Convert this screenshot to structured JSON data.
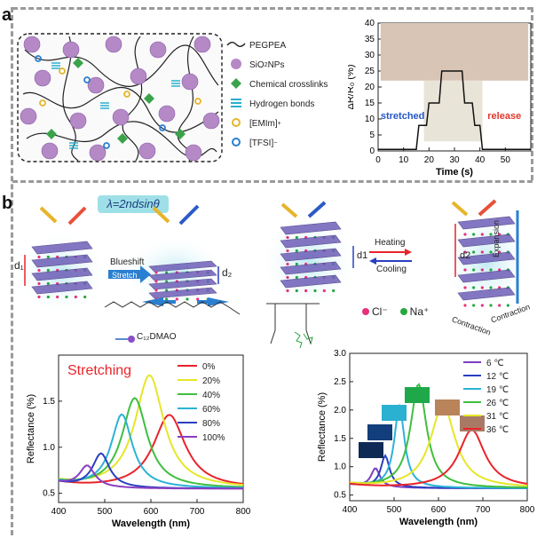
{
  "panel_a": {
    "label": "a",
    "legend": [
      {
        "text": "PEGPEA",
        "icon": "polymer-chain-icon"
      },
      {
        "text": "SiO",
        "sub": "2",
        "tail": " NPs",
        "icon": "nanoparticle-icon"
      },
      {
        "text": "Chemical crosslinks",
        "icon": "crosslink-diamond-icon"
      },
      {
        "text": "Hydrogen bonds",
        "icon": "hydrogen-bond-icon"
      },
      {
        "text": "[EMIm]",
        "sup": "+",
        "icon": "emim-cation-icon"
      },
      {
        "text": "[TFSI]",
        "sup": "−",
        "icon": "tfsi-anion-icon"
      }
    ],
    "chart": {
      "ylabel": "ΔR/R₀ (%)",
      "xlabel": "Time (s)",
      "annotations": [
        "stretched",
        "release"
      ],
      "colors": {
        "stretched": "#2457c5",
        "release": "#e0392b"
      }
    }
  },
  "panel_b": {
    "label": "b",
    "bragg_equation": "λ=2ndsinθ",
    "blueshift_label": "Blueshift",
    "stretch_label": "Stretch",
    "d1": "d₁",
    "d2": "d₂",
    "d1_right": "d1",
    "d2_right": "d2",
    "heating_label": "Heating",
    "cooling_label": "Cooling",
    "expansion_label": "Expansion",
    "contraction_label": "Contraction",
    "surfactant_label": "C₁₂DMAO",
    "ions": [
      {
        "label": "Cl⁻",
        "color": "#e8317a"
      },
      {
        "label": "Na⁺",
        "color": "#27a640"
      }
    ]
  },
  "chart_data": [
    {
      "type": "line",
      "title": "Stretching",
      "xlabel": "Wavelength (nm)",
      "ylabel": "Reflectance (%)",
      "xlim": [
        400,
        800
      ],
      "ylim": [
        0.4,
        2.0
      ],
      "xticks": [
        400,
        500,
        600,
        700,
        800
      ],
      "yticks": [
        0.5,
        1.0,
        1.5
      ],
      "legend_position": "top-right",
      "series": [
        {
          "name": "0%",
          "color": "#e8242a",
          "peak_x": 640,
          "peak_y": 1.35,
          "width": 42
        },
        {
          "name": "20%",
          "color": "#e6e62a",
          "peak_x": 597,
          "peak_y": 1.78,
          "width": 38
        },
        {
          "name": "40%",
          "color": "#3fbf3f",
          "peak_x": 565,
          "peak_y": 1.53,
          "width": 33
        },
        {
          "name": "60%",
          "color": "#2bb3d6",
          "peak_x": 537,
          "peak_y": 1.35,
          "width": 28
        },
        {
          "name": "80%",
          "color": "#2a3fc0",
          "peak_x": 492,
          "peak_y": 0.92,
          "width": 22
        },
        {
          "name": "100%",
          "color": "#8a3fc0",
          "peak_x": 462,
          "peak_y": 0.78,
          "width": 20
        }
      ]
    },
    {
      "type": "line",
      "xlabel": "Wavelength (nm)",
      "ylabel": "Reflectance (%)",
      "xlim": [
        400,
        800
      ],
      "ylim": [
        0.4,
        3.0
      ],
      "xticks": [
        400,
        500,
        600,
        700,
        800
      ],
      "yticks": [
        0.5,
        1.0,
        1.5,
        2.0,
        2.5,
        3.0
      ],
      "legend_position": "top-right",
      "series": [
        {
          "name": "6 ℃",
          "color": "#7b3fc0",
          "peak_x": 458,
          "peak_y": 0.95,
          "width": 12
        },
        {
          "name": "12 ℃",
          "color": "#2a3fc0",
          "peak_x": 480,
          "peak_y": 1.18,
          "width": 12
        },
        {
          "name": "19 ℃",
          "color": "#2bb3d6",
          "peak_x": 512,
          "peak_y": 2.05,
          "width": 14
        },
        {
          "name": "26 ℃",
          "color": "#3fbf3f",
          "peak_x": 555,
          "peak_y": 2.45,
          "width": 22
        },
        {
          "name": "31 ℃",
          "color": "#e6e62a",
          "peak_x": 610,
          "peak_y": 2.08,
          "width": 34
        },
        {
          "name": "36 ℃",
          "color": "#e8242a",
          "peak_x": 675,
          "peak_y": 1.65,
          "width": 36
        }
      ],
      "swatches": [
        "#0f2a55",
        "#123e7c",
        "#2ab0d0",
        "#1fa84a",
        "#b9845a",
        "#a87a66"
      ]
    },
    {
      "type": "line",
      "xlabel": "Time (s)",
      "ylabel": "ΔR/R₀ (%)",
      "xlim": [
        0,
        60
      ],
      "ylim": [
        0,
        40
      ],
      "xticks": [
        0,
        10,
        20,
        30,
        40,
        50
      ],
      "yticks": [
        0,
        5,
        10,
        15,
        20,
        25,
        30,
        35,
        40
      ],
      "series": [
        {
          "name": "",
          "color": "#111111",
          "x": [
            0,
            15,
            16,
            19,
            20,
            24,
            25,
            33,
            34,
            37,
            38,
            40,
            41,
            60
          ],
          "y": [
            0.5,
            0.5,
            8,
            8,
            15,
            15,
            25,
            25,
            15,
            15,
            8,
            8,
            0.5,
            0.5
          ]
        }
      ]
    }
  ]
}
